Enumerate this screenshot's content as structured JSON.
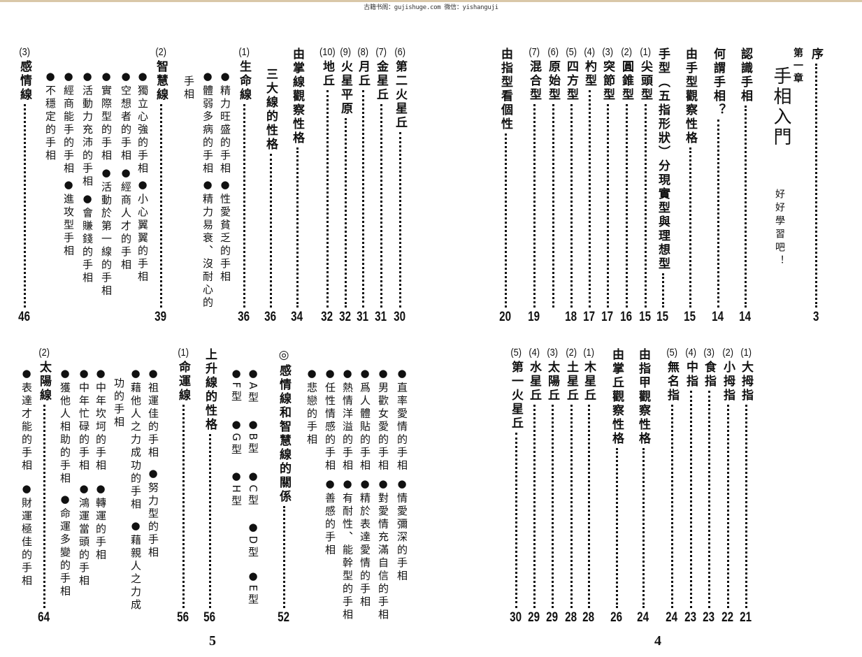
{
  "watermark": "古籍书阁：gujishuge.com 微信：yishanguji",
  "page4": {
    "folio": "4",
    "chapter": {
      "label": "第一章",
      "title": "手相入門",
      "motto": "好好學習吧！"
    },
    "top": [
      {
        "num": "",
        "label": "序",
        "page": "3"
      },
      {
        "num": "",
        "label": "認識手相",
        "page": "14"
      },
      {
        "num": "",
        "label": "何謂手相？",
        "page": "14"
      },
      {
        "num": "",
        "label": "由手型觀察性格",
        "page": "15"
      },
      {
        "num": "",
        "label": "手型（五指形狀）分現實型與理想型",
        "page": "15"
      },
      {
        "num": "(1)",
        "label": "尖頭型",
        "page": "15"
      },
      {
        "num": "(2)",
        "label": "圓錐型",
        "page": "16"
      },
      {
        "num": "(3)",
        "label": "突節型",
        "page": "17"
      },
      {
        "num": "(4)",
        "label": "杓型",
        "page": "17"
      },
      {
        "num": "(5)",
        "label": "四方型",
        "page": "18"
      },
      {
        "num": "(6)",
        "label": "原始型",
        "page": ""
      },
      {
        "num": "(7)",
        "label": "混合型",
        "page": "19"
      },
      {
        "num": "",
        "label": "由指型看個性",
        "page": "20"
      }
    ],
    "bottom": [
      {
        "num": "(1)",
        "label": "大拇指",
        "page": "21"
      },
      {
        "num": "(2)",
        "label": "小拇指",
        "page": "22"
      },
      {
        "num": "(3)",
        "label": "食指",
        "page": "23"
      },
      {
        "num": "(4)",
        "label": "中指",
        "page": "23"
      },
      {
        "num": "(5)",
        "label": "無名指",
        "page": "24"
      },
      {
        "num": "",
        "label": "由指甲觀察性格",
        "page": "24"
      },
      {
        "num": "",
        "label": "由掌丘觀察性格",
        "page": "26"
      },
      {
        "num": "(1)",
        "label": "木星丘",
        "page": "28"
      },
      {
        "num": "(2)",
        "label": "土星丘",
        "page": "28"
      },
      {
        "num": "(3)",
        "label": "太陽丘",
        "page": "29"
      },
      {
        "num": "(4)",
        "label": "水星丘",
        "page": "29"
      },
      {
        "num": "(5)",
        "label": "第一火星丘",
        "page": "30"
      }
    ]
  },
  "page5": {
    "folio": "5",
    "top": [
      {
        "num": "(6)",
        "label": "第二火星丘",
        "page": "30"
      },
      {
        "num": "(7)",
        "label": "金星丘",
        "page": "31"
      },
      {
        "num": "(8)",
        "label": "月丘",
        "page": "31"
      },
      {
        "num": "(9)",
        "label": "火星平原",
        "page": "32"
      },
      {
        "num": "(10)",
        "label": "地丘",
        "page": "32"
      },
      {
        "num": "",
        "label": "由掌線觀察性格",
        "page": "34"
      },
      {
        "num": "",
        "label": "三大線的性格",
        "page": "36"
      },
      {
        "num": "(1)",
        "label": "生命線",
        "page": "36"
      },
      {
        "num": "(2)",
        "label": "智慧線",
        "page": "39"
      },
      {
        "num": "(3)",
        "label": "感情線",
        "page": "46"
      }
    ],
    "top_bullets": [
      "●精力旺盛的手相",
      "●性愛貧乏的手相",
      "●體弱多病的手相",
      "●精力易衰、沒耐心的",
      "手相",
      "●獨立心強的手相",
      "●小心翼翼的手相",
      "●空想者的手相",
      "●經商人才的手相",
      "●實際型的手相",
      "●活動於第一線的手相",
      "●活動力充沛的手相",
      "●會賺錢的手相",
      "●經商能手的手相",
      "●進攻型手相",
      "●不穩定的手相"
    ],
    "bottom": [
      {
        "num": "",
        "label": "◎感情線和智慧線的關係",
        "page": "52"
      },
      {
        "num": "",
        "label": "上升線的性格",
        "page": "56"
      },
      {
        "num": "(1)",
        "label": "命運線",
        "page": "56"
      },
      {
        "num": "(2)",
        "label": "太陽線",
        "page": "64"
      }
    ],
    "bottom_bullets": [
      "●直率愛情的手相",
      "●情愛彌深的手相",
      "●男歡女愛的手相",
      "●對愛情充滿自信的手相",
      "●爲人體貼的手相",
      "●精於表達愛情的手相",
      "●熱情洋溢的手相",
      "●有耐性、能幹型的手相",
      "●任性情感的手相",
      "●善感的手相",
      "●悲戀的手相",
      "●A型",
      "●B型",
      "●C型",
      "●D型",
      "●E型",
      "●F型",
      "●G型",
      "●H型",
      "●祖運佳的手相",
      "●努力型的手相",
      "●藉他人之力成功的手相",
      "●藉親人之力成",
      "功的手相",
      "●中年坎坷的手相",
      "●轉運的手相",
      "●中年忙碌的手相",
      "●鴻運當頭的手相",
      "●獲他人相助的手相",
      "●命運多變的手相",
      "●表達才能的手相",
      "●財運極佳的手相"
    ]
  }
}
